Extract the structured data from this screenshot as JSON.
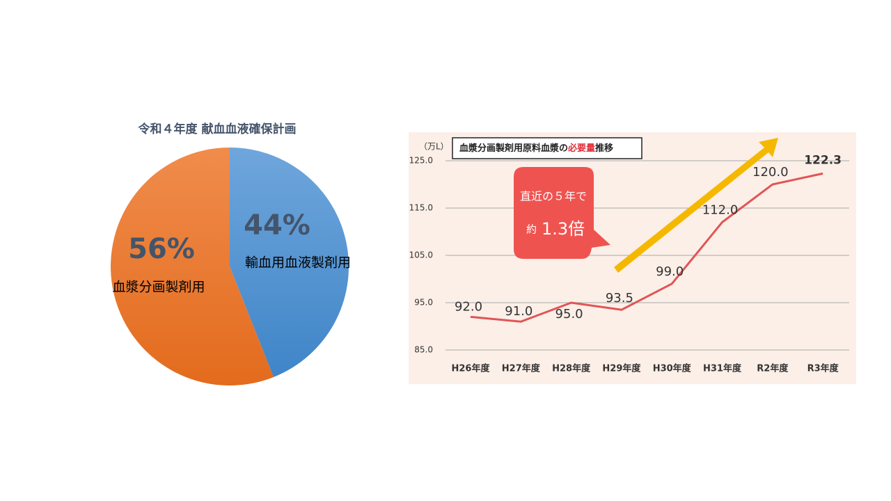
{
  "chart_data": [
    {
      "type": "pie",
      "title": "令和４年度 献血血液確保計画",
      "categories": [
        "輸血用血液製剤用",
        "血漿分画製剤用"
      ],
      "values": [
        44,
        56
      ],
      "value_labels": [
        "44%",
        "56%"
      ],
      "colors": [
        "#5b9bd5",
        "#ed7d31"
      ]
    },
    {
      "type": "line",
      "title_parts": [
        "血漿分画製剤用原料血漿の",
        "必要量",
        "推移"
      ],
      "y_label": "（万L）",
      "annotation": [
        "直近の５年で",
        "約",
        "1.3倍"
      ],
      "categories": [
        "H26年度",
        "H27年度",
        "H28年度",
        "H29年度",
        "H30年度",
        "H31年度",
        "R2年度",
        "R3年度"
      ],
      "values": [
        92.0,
        91.0,
        95.0,
        93.5,
        99.0,
        112.0,
        120.0,
        122.3
      ],
      "value_labels": [
        "92.0",
        "91.0",
        "95.0",
        "93.5",
        "99.0",
        "112.0",
        "120.0",
        "122.3"
      ],
      "color": "#e05555",
      "ylim": [
        85,
        125
      ],
      "yticks": [
        {
          "value": 85,
          "label": "85.0"
        },
        {
          "value": 95,
          "label": "95.0"
        },
        {
          "value": 105,
          "label": "105.0"
        },
        {
          "value": 115,
          "label": "115.0"
        },
        {
          "value": 125,
          "label": "125.0"
        }
      ],
      "grid": true
    }
  ]
}
